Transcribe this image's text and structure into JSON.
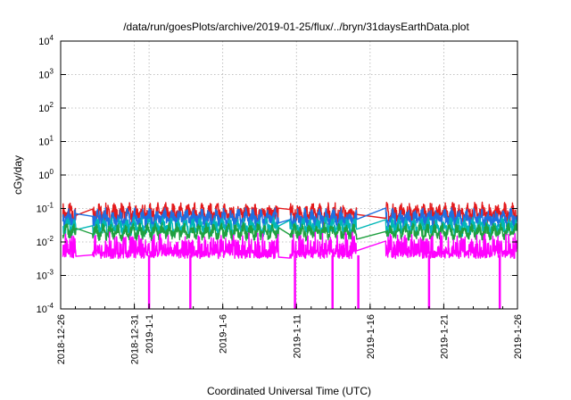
{
  "chart_data": {
    "type": "line",
    "title": "/data/run/goesPlots/archive/2019-01-25/flux/../bryn/31daysEarthData.plot",
    "xlabel": "Coordinated Universal Time (UTC)",
    "ylabel": "cGy/day",
    "y_scale": "log",
    "ylim": [
      0.0001,
      10000
    ],
    "xlim": [
      "2018-12-26",
      "2019-01-26"
    ],
    "grid": true,
    "x_ticks": [
      "2018-12-26",
      "2018-12-31",
      "2019-1-1",
      "2019-1-6",
      "2019-1-11",
      "2019-1-16",
      "2019-1-21",
      "2019-1-26"
    ],
    "y_ticks": [
      {
        "base": "10",
        "exp": "-4"
      },
      {
        "base": "10",
        "exp": "-3"
      },
      {
        "base": "10",
        "exp": "-2"
      },
      {
        "base": "10",
        "exp": "-1"
      },
      {
        "base": "10",
        "exp": "0"
      },
      {
        "base": "10",
        "exp": "1"
      },
      {
        "base": "10",
        "exp": "2"
      },
      {
        "base": "10",
        "exp": "3"
      },
      {
        "base": "10",
        "exp": "4"
      }
    ],
    "data_gaps_days": [
      [
        1.05,
        2.15
      ],
      [
        14.8,
        15.55
      ],
      [
        20.1,
        22.05
      ]
    ],
    "series": [
      {
        "color": "#e41a1c",
        "level": 0.07,
        "jitter": 0.45
      },
      {
        "color": "#1e6fe0",
        "level": 0.05,
        "jitter": 0.4
      },
      {
        "color": "#00b7b7",
        "level": 0.028,
        "jitter": 0.35
      },
      {
        "color": "#20a040",
        "level": 0.02,
        "jitter": 0.3
      },
      {
        "color": "#ff00ff",
        "level": 0.008,
        "jitter": 0.55,
        "floor": 0.004,
        "dropouts_days": [
          6.0,
          8.8,
          15.9,
          18.45,
          20.2,
          25.0,
          29.8
        ]
      }
    ]
  }
}
